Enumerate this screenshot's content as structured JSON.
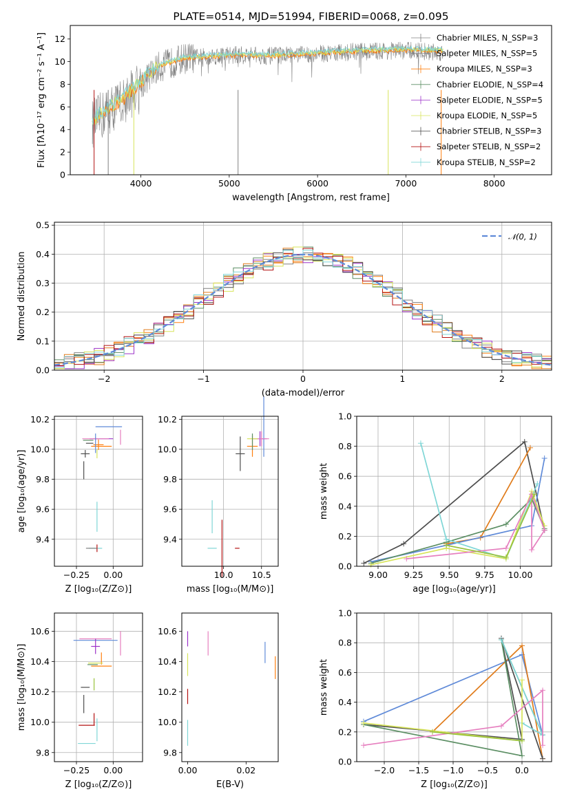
{
  "colors": {
    "grey": "#808080",
    "orange": "#ff7f0e",
    "dorange": "#e07b1a",
    "green": "#5b8e63",
    "purple": "#9b30c8",
    "yellow": "#d7e45a",
    "dgrey": "#4d4d4d",
    "red": "#b31212",
    "cyan": "#7fd6d6",
    "blue": "#5f8ad8",
    "pink": "#e67fbf",
    "lime": "#99c23c",
    "normal": "#5f8ad8"
  },
  "chart_data": [
    {
      "panel": "spectrum",
      "type": "line",
      "title": "PLATE=0514, MJD=51994, FIBERID=0068, z=0.095",
      "xlabel": "wavelength [Angstrom, rest frame]",
      "ylabel": "Flux [fλ10⁻¹⁷ erg cm⁻² s⁻¹ A⁻¹]",
      "xlim": [
        3200,
        8650
      ],
      "ylim": [
        0,
        13.2
      ],
      "xticks": [
        4000,
        5000,
        6000,
        7000,
        8000
      ],
      "yticks": [
        0,
        2,
        4,
        6,
        8,
        10,
        12
      ],
      "grid": false,
      "legend_position": "upper right",
      "legend": [
        "Chabrier MILES, N_SSP=3",
        "Salpeter MILES, N_SSP=5",
        "Kroupa MILES, N_SSP=3",
        "Chabrier ELODIE, N_SSP=4",
        "Salpeter ELODIE, N_SSP=5",
        "Kroupa ELODIE, N_SSP=5",
        "Chabrier STELIB, N_SSP=3",
        "Salpeter STELIB, N_SSP=2",
        "Kroupa STELIB, N_SSP=2"
      ],
      "observed": {
        "x": [
          3450,
          3600,
          3800,
          4000,
          4200,
          4500,
          5000,
          5500,
          6000,
          6500,
          7000,
          7400
        ],
        "y": [
          4.5,
          5.5,
          6.5,
          8.0,
          9.5,
          10.3,
          10.6,
          10.5,
          10.7,
          10.9,
          11.0,
          10.8
        ]
      },
      "models": {
        "x": [
          3450,
          3600,
          3800,
          4000,
          4200,
          4500,
          5000,
          5500,
          6000,
          6500,
          7000,
          7400
        ],
        "y": [
          4.8,
          5.7,
          6.8,
          8.3,
          9.7,
          10.4,
          10.6,
          10.6,
          10.8,
          11.0,
          11.1,
          11.0
        ]
      },
      "spikes": [
        {
          "x": 3470,
          "color": "#b31212"
        },
        {
          "x": 3630,
          "color": "#808080"
        },
        {
          "x": 3920,
          "color": "#d7e45a"
        },
        {
          "x": 5100,
          "color": "#808080"
        },
        {
          "x": 6800,
          "color": "#d7e45a"
        },
        {
          "x": 7400,
          "color": "#ff7f0e"
        }
      ]
    },
    {
      "panel": "residuals",
      "type": "histogram",
      "xlabel": "(data-model)/error",
      "ylabel": "Normed distribution",
      "xlim": [
        -2.5,
        2.5
      ],
      "ylim": [
        0,
        0.51
      ],
      "xticks": [
        -2,
        -1,
        0,
        1,
        2
      ],
      "yticks": [
        0.0,
        0.1,
        0.2,
        0.3,
        0.4,
        0.5
      ],
      "grid": true,
      "legend": [
        "𝒩(0, 1)"
      ],
      "legend_position": "upper right",
      "bin_width": 0.1
    },
    {
      "panel": "age-vs-Z",
      "type": "scatter",
      "xlabel": "Z [log₁₀(Z/Z⊙)]",
      "ylabel": "age  [log₁₀(age/yr)]",
      "xlim": [
        -0.4,
        0.2
      ],
      "ylim": [
        9.22,
        10.22
      ],
      "xticks": [
        -0.25,
        0.0
      ],
      "yticks": [
        9.4,
        9.6,
        9.8,
        10.0,
        10.2
      ],
      "grid": true,
      "crosses": [
        {
          "x": -0.03,
          "y": 10.15,
          "dx": 0.18,
          "dy": 0.0,
          "color": "#5f8ad8"
        },
        {
          "x": -0.08,
          "y": 10.07,
          "dx": 0.16,
          "dy": 0.0,
          "color": "#9b30c8"
        },
        {
          "x": -0.12,
          "y": 10.07,
          "dx": 0.18,
          "dy": 0.02,
          "color": "#e67fbf"
        },
        {
          "x": -0.08,
          "y": 10.02,
          "dx": 0.14,
          "dy": 0.0,
          "color": "#ff7f0e"
        },
        {
          "x": -0.1,
          "y": 10.03,
          "dx": 0.07,
          "dy": 0.07,
          "color": "#ff7f0e"
        },
        {
          "x": -0.17,
          "y": 10.06,
          "dx": 0.07,
          "dy": 0.0,
          "color": "#5b8e63"
        },
        {
          "x": -0.16,
          "y": 10.04,
          "dx": 0.05,
          "dy": 0.0,
          "color": "#4d4d4d"
        },
        {
          "x": -0.19,
          "y": 9.97,
          "dx": 0.06,
          "dy": 0.05,
          "color": "#4d4d4d"
        },
        {
          "x": -0.2,
          "y": 9.86,
          "dx": 0.0,
          "dy": 0.12,
          "color": "#4d4d4d"
        },
        {
          "x": -0.11,
          "y": 9.97,
          "dx": 0.0,
          "dy": 0.06,
          "color": "#d7e45a"
        },
        {
          "x": -0.11,
          "y": 9.55,
          "dx": 0.0,
          "dy": 0.2,
          "color": "#7fd6d6"
        },
        {
          "x": -0.12,
          "y": 9.34,
          "dx": 0.09,
          "dy": 0.0,
          "color": "#7fd6d6"
        },
        {
          "x": -0.11,
          "y": 9.34,
          "dx": 0.0,
          "dy": 0.05,
          "color": "#b31212"
        },
        {
          "x": -0.15,
          "y": 9.34,
          "dx": 0.07,
          "dy": 0.0,
          "color": "#808080"
        },
        {
          "x": -0.12,
          "y": 10.04,
          "dx": 0.0,
          "dy": 0.13,
          "color": "#5f8ad8"
        },
        {
          "x": 0.05,
          "y": 10.08,
          "dx": 0.0,
          "dy": 0.1,
          "color": "#e67fbf"
        }
      ]
    },
    {
      "panel": "age-vs-mass",
      "type": "scatter",
      "xlabel": "mass [log₁₀(M/M⊙)]",
      "ylabel": "",
      "xlim": [
        9.45,
        10.72
      ],
      "ylim": [
        9.22,
        10.22
      ],
      "xticks": [
        10.0,
        10.5
      ],
      "yticks": [
        9.4,
        9.6,
        9.8,
        10.0,
        10.2
      ],
      "grid": true,
      "crosses": [
        {
          "x": 10.53,
          "y": 10.15,
          "dx": 0.0,
          "dy": 0.4,
          "color": "#5f8ad8"
        },
        {
          "x": 10.48,
          "y": 10.07,
          "dx": 0.18,
          "dy": 0.1,
          "color": "#9b30c8"
        },
        {
          "x": 10.5,
          "y": 10.07,
          "dx": 0.2,
          "dy": 0.1,
          "color": "#e67fbf"
        },
        {
          "x": 10.38,
          "y": 10.02,
          "dx": 0.14,
          "dy": 0.14,
          "color": "#ff7f0e"
        },
        {
          "x": 10.38,
          "y": 10.07,
          "dx": 0.14,
          "dy": 0.0,
          "color": "#d7e45a"
        },
        {
          "x": 10.38,
          "y": 10.05,
          "dx": 0.0,
          "dy": 0.11,
          "color": "#5b8e63"
        },
        {
          "x": 10.22,
          "y": 9.97,
          "dx": 0.12,
          "dy": 0.23,
          "color": "#4d4d4d"
        },
        {
          "x": 9.98,
          "y": 9.34,
          "dx": 0.0,
          "dy": 0.38,
          "color": "#b31212"
        },
        {
          "x": 10.18,
          "y": 9.34,
          "dx": 0.06,
          "dy": 0.0,
          "color": "#b31212"
        },
        {
          "x": 9.85,
          "y": 9.34,
          "dx": 0.12,
          "dy": 0.0,
          "color": "#7fd6d6"
        },
        {
          "x": 9.85,
          "y": 9.55,
          "dx": 0.0,
          "dy": 0.22,
          "color": "#7fd6d6"
        }
      ]
    },
    {
      "panel": "weight-vs-age",
      "type": "line",
      "xlabel": "age  [log₁₀(age/yr)]",
      "ylabel": "mass weight",
      "xlim": [
        8.85,
        10.22
      ],
      "ylim": [
        0,
        1.0
      ],
      "xticks": [
        9.0,
        9.25,
        9.5,
        9.75,
        10.0
      ],
      "yticks": [
        0.0,
        0.2,
        0.4,
        0.6,
        0.8,
        1.0
      ],
      "grid": true,
      "series": [
        {
          "color": "#4d4d4d",
          "x": [
            8.9,
            9.18,
            10.03,
            10.17
          ],
          "y": [
            0.02,
            0.15,
            0.83,
            0.24
          ]
        },
        {
          "color": "#e07b1a",
          "x": [
            9.48,
            9.72,
            10.07
          ],
          "y": [
            0.15,
            0.19,
            0.79
          ]
        },
        {
          "color": "#5f8ad8",
          "x": [
            8.95,
            9.48,
            10.08,
            10.17
          ],
          "y": [
            0.03,
            0.14,
            0.27,
            0.72
          ]
        },
        {
          "color": "#5b8e63",
          "x": [
            8.95,
            9.48,
            9.9,
            10.08,
            10.17
          ],
          "y": [
            0.02,
            0.16,
            0.28,
            0.45,
            0.25
          ]
        },
        {
          "color": "#7fd6d6",
          "x": [
            9.3,
            9.48,
            9.9,
            10.12
          ],
          "y": [
            0.82,
            0.18,
            0.05,
            0.55
          ]
        },
        {
          "color": "#d7e45a",
          "x": [
            8.95,
            9.48,
            9.9,
            10.08,
            10.17
          ],
          "y": [
            0.01,
            0.12,
            0.05,
            0.5,
            0.27
          ]
        },
        {
          "color": "#e67fbf",
          "x": [
            9.2,
            9.9,
            10.08,
            10.17,
            10.08,
            10.08
          ],
          "y": [
            0.05,
            0.12,
            0.48,
            0.24,
            0.11,
            0.48
          ]
        },
        {
          "color": "#99c23c",
          "x": [
            9.48,
            9.9,
            10.1
          ],
          "y": [
            0.14,
            0.06,
            0.48
          ]
        }
      ]
    },
    {
      "panel": "mass-vs-Z",
      "type": "scatter",
      "xlabel": "Z [log₁₀(Z/Z⊙)]",
      "ylabel": "mass [log₁₀(M/M⊙)]",
      "xlim": [
        -0.4,
        0.2
      ],
      "ylim": [
        9.74,
        10.72
      ],
      "xticks": [
        -0.25,
        0.0
      ],
      "yticks": [
        9.8,
        10.0,
        10.2,
        10.4,
        10.6
      ],
      "grid": true,
      "crosses": [
        {
          "x": -0.12,
          "y": 10.54,
          "dx": 0.3,
          "dy": 0.0,
          "color": "#5f8ad8"
        },
        {
          "x": -0.12,
          "y": 10.55,
          "dx": 0.22,
          "dy": 0.0,
          "color": "#e67fbf"
        },
        {
          "x": -0.12,
          "y": 10.5,
          "dx": 0.06,
          "dy": 0.1,
          "color": "#9b30c8"
        },
        {
          "x": 0.05,
          "y": 10.52,
          "dx": 0.0,
          "dy": 0.16,
          "color": "#e67fbf"
        },
        {
          "x": -0.08,
          "y": 10.37,
          "dx": 0.14,
          "dy": 0.0,
          "color": "#ff7f0e"
        },
        {
          "x": -0.08,
          "y": 10.42,
          "dx": 0.0,
          "dy": 0.08,
          "color": "#ff7f0e"
        },
        {
          "x": -0.12,
          "y": 10.39,
          "dx": 0.1,
          "dy": 0.0,
          "color": "#d7e45a"
        },
        {
          "x": -0.14,
          "y": 10.38,
          "dx": 0.07,
          "dy": 0.0,
          "color": "#5b8e63"
        },
        {
          "x": -0.13,
          "y": 10.25,
          "dx": 0.0,
          "dy": 0.08,
          "color": "#99c23c"
        },
        {
          "x": -0.19,
          "y": 10.23,
          "dx": 0.06,
          "dy": 0.0,
          "color": "#4d4d4d"
        },
        {
          "x": -0.2,
          "y": 10.12,
          "dx": 0.0,
          "dy": 0.12,
          "color": "#4d4d4d"
        },
        {
          "x": -0.13,
          "y": 10.02,
          "dx": 0.0,
          "dy": 0.08,
          "color": "#b31212"
        },
        {
          "x": -0.18,
          "y": 9.98,
          "dx": 0.11,
          "dy": 0.0,
          "color": "#b31212"
        },
        {
          "x": -0.11,
          "y": 9.95,
          "dx": 0.0,
          "dy": 0.15,
          "color": "#7fd6d6"
        },
        {
          "x": -0.18,
          "y": 9.86,
          "dx": 0.12,
          "dy": 0.0,
          "color": "#7fd6d6"
        }
      ]
    },
    {
      "panel": "mass-vs-EBV",
      "type": "scatter",
      "xlabel": "E(B-V)",
      "ylabel": "",
      "xlim": [
        -0.002,
        0.031
      ],
      "ylim": [
        9.74,
        10.72
      ],
      "xticks": [
        0.0,
        0.02
      ],
      "yticks": [
        9.8,
        10.0,
        10.2,
        10.4,
        10.6
      ],
      "grid": false,
      "crosses": [
        {
          "x": 0.0,
          "y": 10.55,
          "dx": 0.0,
          "dy": 0.1,
          "color": "#9b30c8"
        },
        {
          "x": 0.0,
          "y": 10.38,
          "dx": 0.0,
          "dy": 0.15,
          "color": "#d7e45a"
        },
        {
          "x": 0.0,
          "y": 10.17,
          "dx": 0.0,
          "dy": 0.1,
          "color": "#b31212"
        },
        {
          "x": 0.0,
          "y": 9.93,
          "dx": 0.0,
          "dy": 0.17,
          "color": "#7fd6d6"
        },
        {
          "x": 0.007,
          "y": 10.52,
          "dx": 0.0,
          "dy": 0.16,
          "color": "#e67fbf"
        },
        {
          "x": 0.0265,
          "y": 10.46,
          "dx": 0.0,
          "dy": 0.14,
          "color": "#5f8ad8"
        },
        {
          "x": 0.03,
          "y": 10.36,
          "dx": 0.0,
          "dy": 0.15,
          "color": "#ff7f0e"
        }
      ]
    },
    {
      "panel": "weight-vs-Z",
      "type": "line",
      "xlabel": "Z [log₁₀(Z/Z⊙)]",
      "ylabel": "mass weight",
      "xlim": [
        -2.4,
        0.43
      ],
      "ylim": [
        0,
        1.0
      ],
      "xticks": [
        -2.0,
        -1.5,
        -1.0,
        -0.5,
        0.0
      ],
      "yticks": [
        0.0,
        0.2,
        0.4,
        0.6,
        0.8,
        1.0
      ],
      "grid": true,
      "series": [
        {
          "color": "#5f8ad8",
          "x": [
            -2.3,
            0.0,
            0.3
          ],
          "y": [
            0.27,
            0.72,
            0.18
          ]
        },
        {
          "color": "#e07b1a",
          "x": [
            -1.3,
            0.0,
            0.3
          ],
          "y": [
            0.2,
            0.78,
            0.02
          ]
        },
        {
          "color": "#4d4d4d",
          "x": [
            -2.3,
            0.0,
            -0.3,
            0.3
          ],
          "y": [
            0.25,
            0.15,
            0.83,
            0.02
          ]
        },
        {
          "color": "#5b8e63",
          "x": [
            -2.3,
            0.0,
            -0.3,
            0.3
          ],
          "y": [
            0.25,
            0.04,
            0.82,
            0.18
          ]
        },
        {
          "color": "#7fd6d6",
          "x": [
            -0.3,
            0.3,
            0.0
          ],
          "y": [
            0.82,
            0.18,
            0.26
          ]
        },
        {
          "color": "#d7e45a",
          "x": [
            -2.3,
            0.0,
            0.0
          ],
          "y": [
            0.26,
            0.14,
            0.55
          ]
        },
        {
          "color": "#e67fbf",
          "x": [
            -2.3,
            -0.3,
            0.3,
            0.3
          ],
          "y": [
            0.11,
            0.24,
            0.48,
            0.11
          ]
        },
        {
          "color": "#99c23c",
          "x": [
            -1.3,
            0.0
          ],
          "y": [
            0.2,
            0.14
          ]
        }
      ]
    }
  ]
}
